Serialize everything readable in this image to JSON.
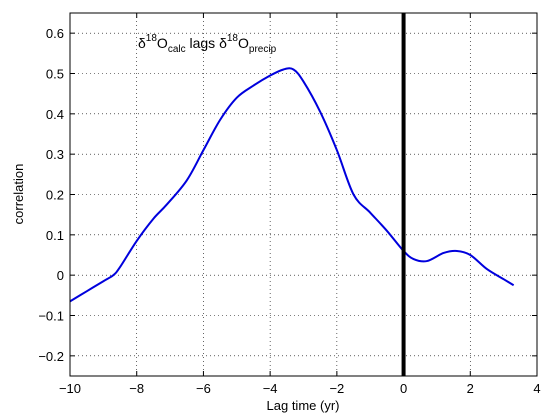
{
  "chart_data": {
    "type": "line",
    "title": "",
    "xlabel": "Lag time (yr)",
    "ylabel": "correlation",
    "xlim": [
      -10,
      4
    ],
    "ylim": [
      -0.25,
      0.65
    ],
    "xticks": [
      -10,
      -8,
      -6,
      -4,
      -2,
      0,
      2,
      4
    ],
    "xtick_labels": [
      "−10",
      "−8",
      "−6",
      "−4",
      "−2",
      "0",
      "2",
      "4"
    ],
    "yticks": [
      -0.2,
      -0.1,
      0,
      0.1,
      0.2,
      0.3,
      0.4,
      0.5,
      0.6
    ],
    "ytick_labels": [
      "−0.2",
      "−0.1",
      "0",
      "0.1",
      "0.2",
      "0.3",
      "0.4",
      "0.5",
      "0.6"
    ],
    "grid": true,
    "series_color": "#0000dd",
    "series": [
      {
        "x": [
          -10,
          -9.5,
          -9,
          -8.7,
          -8.5,
          -8,
          -7.5,
          -7.1,
          -6.5,
          -6,
          -5.5,
          -5,
          -4.5,
          -4,
          -3.6,
          -3.3,
          -3,
          -2.5,
          -2,
          -1.5,
          -1,
          -0.5,
          0,
          0.3,
          0.7,
          1.2,
          1.6,
          2,
          2.5,
          3,
          3.3
        ],
        "y": [
          -0.065,
          -0.04,
          -0.015,
          0.0,
          0.02,
          0.085,
          0.14,
          0.175,
          0.235,
          0.31,
          0.385,
          0.44,
          0.47,
          0.495,
          0.51,
          0.51,
          0.48,
          0.405,
          0.31,
          0.2,
          0.155,
          0.11,
          0.06,
          0.04,
          0.035,
          0.055,
          0.06,
          0.05,
          0.015,
          -0.01,
          -0.025
        ]
      }
    ],
    "vline": {
      "x": 0,
      "color": "#000000"
    },
    "annotation": {
      "part1_base": "δ",
      "part1_sup": "18",
      "part1_mid": "O",
      "part1_sub": "calc",
      "middle": " lags ",
      "part2_base": "δ",
      "part2_sup": "18",
      "part2_mid": "O",
      "part2_sub": "precip"
    }
  }
}
